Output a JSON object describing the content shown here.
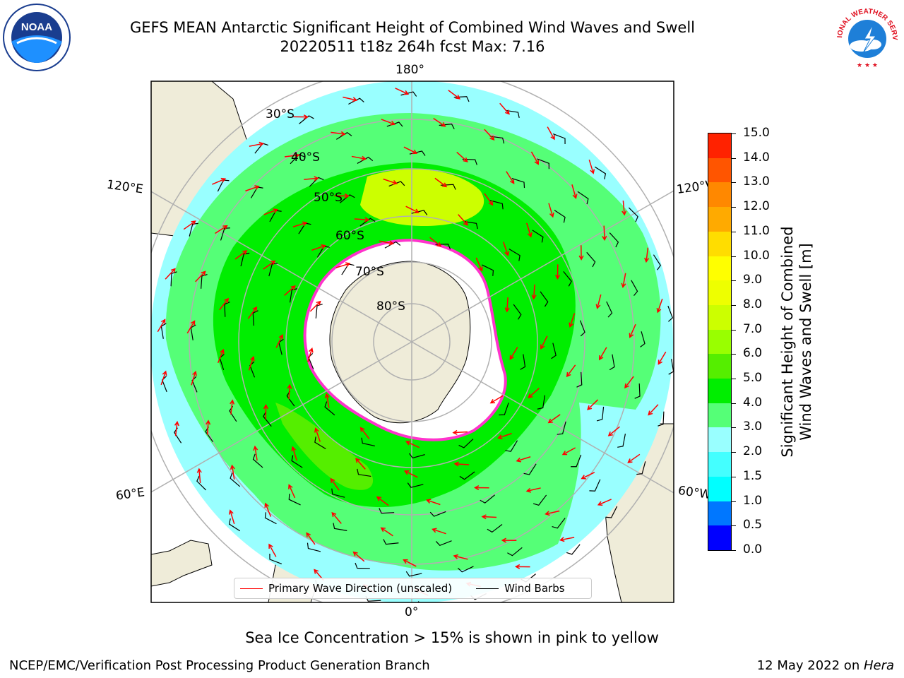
{
  "header": {
    "title_line1": "GEFS MEAN Antarctic Significant Height of Combined Wind Waves and Swell",
    "title_line2": "20220511 t18z 264h fcst   Max: 7.16"
  },
  "logos": {
    "noaa_text": "NOAA",
    "nws_text": "NATIONAL WEATHER SERVICE"
  },
  "map": {
    "longitude_labels": {
      "top": "180°",
      "left_upper": "120°E",
      "right_upper": "120°W",
      "left_lower": "60°E",
      "right_lower": "60°W",
      "bottom": "0°"
    },
    "latitude_labels": [
      "30°S",
      "40°S",
      "50°S",
      "60°S",
      "70°S",
      "80°S"
    ],
    "colors": {
      "land": "#efecd9",
      "ice": "#ffffff",
      "ocean_low": "#99ffff",
      "ocean_mid": "#55ff77",
      "ocean_high": "#00ee00",
      "ocean_peak": "#ccff00",
      "arrow": "#ff0000",
      "barb": "#000000",
      "grid": "#b0b0b0"
    }
  },
  "colorbar": {
    "tick_labels": [
      "0.0",
      "0.5",
      "1.0",
      "1.5",
      "2.0",
      "3.0",
      "4.0",
      "5.0",
      "6.0",
      "7.0",
      "8.0",
      "9.0",
      "10.0",
      "11.0",
      "12.0",
      "13.0",
      "14.0",
      "15.0"
    ],
    "colors": [
      "#0000ff",
      "#0077ff",
      "#00ffff",
      "#44ffff",
      "#99ffff",
      "#55ff77",
      "#00ee00",
      "#55ee00",
      "#99ff00",
      "#ccff00",
      "#eeff00",
      "#ffff00",
      "#ffdd00",
      "#ffaa00",
      "#ff8800",
      "#ff5500",
      "#ff2200"
    ],
    "label_line1": "Significant Height of Combined",
    "label_line2": "Wind Waves and Swell [m]"
  },
  "legend": {
    "wave_label": "Primary Wave Direction (unscaled)",
    "barb_label": "Wind Barbs"
  },
  "footer": {
    "ice_note": "Sea Ice Concentration > 15% is shown in pink to yellow",
    "left": "NCEP/EMC/Verification Post Processing Product Generation Branch",
    "right_prefix": "12 May 2022 on ",
    "right_host": "Hera"
  }
}
